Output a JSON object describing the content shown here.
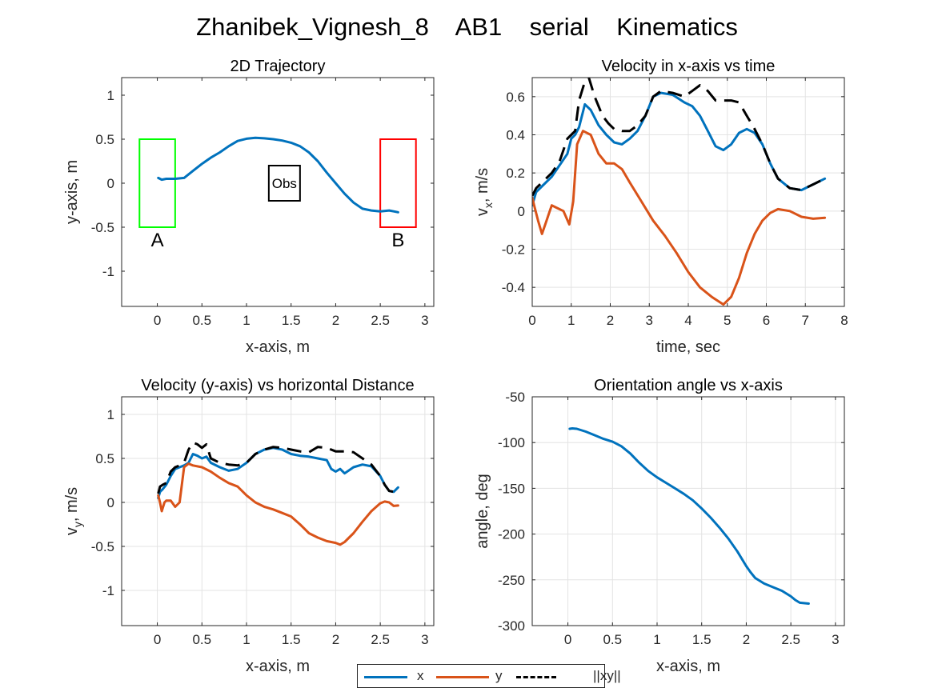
{
  "figure": {
    "title": "Zhanibek_Vignesh_8    AB1    serial    Kinematics"
  },
  "colors": {
    "x": "#0072BD",
    "y": "#D95319",
    "xy": "#000000",
    "start_box": "#00FF00",
    "end_box": "#FF0000",
    "obstacle": "#000000"
  },
  "legend": {
    "items": [
      {
        "label": "x",
        "color": "#0072BD",
        "style": "solid"
      },
      {
        "label": "y",
        "color": "#D95319",
        "style": "solid"
      },
      {
        "label": "||xy||",
        "color": "#000000",
        "style": "dashed"
      }
    ],
    "placement": "bottom-center"
  },
  "chart_data": [
    {
      "type": "line",
      "title": "2D Trajectory",
      "xlabel": "x-axis, m",
      "ylabel": "y-axis, m",
      "xlim": [
        -0.4,
        3.1
      ],
      "ylim": [
        -1.4,
        1.2
      ],
      "xticks": [
        0,
        0.5,
        1,
        1.5,
        2,
        2.5,
        3
      ],
      "xtick_labels": [
        "0",
        "0.5",
        "1",
        "1.5",
        "2",
        "2.5",
        "3"
      ],
      "yticks": [
        -1,
        -0.5,
        0,
        0.5,
        1
      ],
      "ytick_labels": [
        "-1",
        "-0.5",
        "0",
        "0.5",
        "1"
      ],
      "grid": false,
      "series": [
        {
          "color": "#0072BD",
          "style": "solid",
          "x": [
            0.01,
            0.05,
            0.1,
            0.2,
            0.3,
            0.4,
            0.5,
            0.6,
            0.7,
            0.8,
            0.9,
            1.0,
            1.1,
            1.2,
            1.3,
            1.4,
            1.5,
            1.6,
            1.7,
            1.8,
            1.9,
            2.0,
            2.1,
            2.2,
            2.3,
            2.4,
            2.5,
            2.6,
            2.65,
            2.7
          ],
          "y": [
            0.06,
            0.04,
            0.05,
            0.05,
            0.06,
            0.14,
            0.22,
            0.29,
            0.35,
            0.42,
            0.48,
            0.505,
            0.515,
            0.51,
            0.5,
            0.485,
            0.46,
            0.42,
            0.35,
            0.25,
            0.12,
            0.0,
            -0.12,
            -0.22,
            -0.29,
            -0.31,
            -0.32,
            -0.31,
            -0.32,
            -0.33
          ]
        }
      ],
      "rects": [
        {
          "x": [
            -0.2,
            0.2
          ],
          "y": [
            -0.5,
            0.5
          ],
          "color": "#00FF00",
          "label": "A"
        },
        {
          "x": [
            2.5,
            2.9
          ],
          "y": [
            -0.5,
            0.5
          ],
          "color": "#FF0000",
          "label": "B"
        },
        {
          "x": [
            1.25,
            1.6
          ],
          "y": [
            -0.2,
            0.2
          ],
          "color": "#000000",
          "label": "Obs"
        }
      ]
    },
    {
      "type": "line",
      "title": "Velocity in x-axis vs time",
      "xlabel": "time, sec",
      "ylabel": "v_x, m/s",
      "xlim": [
        0,
        8
      ],
      "ylim": [
        -0.5,
        0.7
      ],
      "xticks": [
        0,
        1,
        2,
        3,
        4,
        5,
        6,
        7,
        8
      ],
      "xtick_labels": [
        "0",
        "1",
        "2",
        "3",
        "4",
        "5",
        "6",
        "7",
        "8"
      ],
      "yticks": [
        -0.4,
        -0.2,
        0,
        0.2,
        0.4,
        0.6
      ],
      "ytick_labels": [
        "-0.4",
        "-0.2",
        "0",
        "0.2",
        "0.4",
        "0.6"
      ],
      "grid": true,
      "series": [
        {
          "name": "x",
          "color": "#0072BD",
          "style": "solid",
          "x": [
            0,
            0.1,
            0.3,
            0.5,
            0.7,
            0.9,
            1.0,
            1.1,
            1.2,
            1.35,
            1.5,
            1.7,
            1.9,
            2.1,
            2.3,
            2.5,
            2.7,
            2.9,
            3.1,
            3.3,
            3.6,
            3.9,
            4.1,
            4.3,
            4.5,
            4.7,
            4.9,
            5.1,
            5.3,
            5.5,
            5.7,
            5.9,
            6.1,
            6.3,
            6.6,
            6.9,
            7.2,
            7.5
          ],
          "y": [
            0.03,
            0.1,
            0.14,
            0.18,
            0.24,
            0.3,
            0.38,
            0.4,
            0.44,
            0.56,
            0.53,
            0.45,
            0.4,
            0.36,
            0.35,
            0.38,
            0.42,
            0.5,
            0.6,
            0.62,
            0.61,
            0.57,
            0.55,
            0.5,
            0.42,
            0.34,
            0.32,
            0.35,
            0.41,
            0.43,
            0.41,
            0.35,
            0.25,
            0.17,
            0.12,
            0.11,
            0.14,
            0.17
          ]
        },
        {
          "name": "y",
          "color": "#D95319",
          "style": "solid",
          "x": [
            0,
            0.05,
            0.15,
            0.25,
            0.35,
            0.45,
            0.5,
            0.6,
            0.8,
            0.95,
            1.05,
            1.15,
            1.3,
            1.5,
            1.7,
            1.9,
            2.1,
            2.3,
            2.5,
            2.8,
            3.1,
            3.4,
            3.7,
            4.0,
            4.3,
            4.6,
            4.9,
            5.1,
            5.3,
            5.5,
            5.7,
            5.9,
            6.1,
            6.3,
            6.6,
            6.9,
            7.2,
            7.5
          ],
          "y": [
            0.07,
            0.03,
            -0.05,
            -0.12,
            -0.06,
            0.0,
            0.03,
            0.02,
            0.0,
            -0.07,
            0.05,
            0.35,
            0.42,
            0.4,
            0.3,
            0.25,
            0.25,
            0.22,
            0.15,
            0.05,
            -0.05,
            -0.13,
            -0.22,
            -0.32,
            -0.4,
            -0.45,
            -0.49,
            -0.45,
            -0.35,
            -0.22,
            -0.12,
            -0.05,
            -0.01,
            0.01,
            0.0,
            -0.03,
            -0.04,
            -0.035
          ]
        },
        {
          "name": "||xy||",
          "color": "#000000",
          "style": "dashed",
          "x": [
            0,
            0.1,
            0.3,
            0.5,
            0.7,
            0.9,
            1.0,
            1.1,
            1.2,
            1.35,
            1.45,
            1.6,
            1.8,
            1.95,
            2.1,
            2.3,
            2.5,
            2.7,
            2.9,
            3.1,
            3.3,
            3.6,
            3.9,
            4.1,
            4.3,
            4.5,
            4.7,
            4.9,
            5.1,
            5.3,
            5.5,
            5.7,
            5.9,
            6.1,
            6.3,
            6.6,
            6.9,
            7.2,
            7.5
          ],
          "y": [
            0.08,
            0.12,
            0.16,
            0.2,
            0.26,
            0.38,
            0.4,
            0.42,
            0.58,
            0.68,
            0.7,
            0.6,
            0.5,
            0.46,
            0.43,
            0.42,
            0.42,
            0.45,
            0.5,
            0.6,
            0.63,
            0.62,
            0.6,
            0.63,
            0.66,
            0.63,
            0.58,
            0.58,
            0.58,
            0.57,
            0.5,
            0.43,
            0.35,
            0.25,
            0.17,
            0.12,
            0.11,
            0.14,
            0.17
          ]
        }
      ]
    },
    {
      "type": "line",
      "title": "Velocity (y-axis) vs horizontal Distance",
      "xlabel": "x-axis, m",
      "ylabel": "v_y, m/s",
      "xlim": [
        -0.4,
        3.1
      ],
      "ylim": [
        -1.4,
        1.2
      ],
      "xticks": [
        0,
        0.5,
        1,
        1.5,
        2,
        2.5,
        3
      ],
      "xtick_labels": [
        "0",
        "0.5",
        "1",
        "1.5",
        "2",
        "2.5",
        "3"
      ],
      "yticks": [
        -1,
        -0.5,
        0,
        0.5,
        1
      ],
      "ytick_labels": [
        "-1",
        "-0.5",
        "0",
        "0.5",
        "1"
      ],
      "grid": true,
      "series": [
        {
          "name": "x",
          "color": "#0072BD",
          "style": "solid",
          "x": [
            0.01,
            0.03,
            0.06,
            0.1,
            0.15,
            0.2,
            0.25,
            0.3,
            0.35,
            0.4,
            0.45,
            0.5,
            0.55,
            0.6,
            0.7,
            0.8,
            0.9,
            1.0,
            1.1,
            1.2,
            1.3,
            1.4,
            1.5,
            1.6,
            1.7,
            1.8,
            1.9,
            1.95,
            2.0,
            2.05,
            2.1,
            2.2,
            2.3,
            2.4,
            2.5,
            2.55,
            2.6,
            2.65,
            2.7
          ],
          "y": [
            0.05,
            0.12,
            0.15,
            0.2,
            0.3,
            0.38,
            0.4,
            0.42,
            0.45,
            0.55,
            0.53,
            0.5,
            0.52,
            0.45,
            0.4,
            0.36,
            0.38,
            0.45,
            0.55,
            0.6,
            0.62,
            0.6,
            0.55,
            0.53,
            0.52,
            0.5,
            0.48,
            0.38,
            0.35,
            0.38,
            0.33,
            0.4,
            0.43,
            0.41,
            0.3,
            0.2,
            0.13,
            0.12,
            0.17
          ]
        },
        {
          "name": "y",
          "color": "#D95319",
          "style": "solid",
          "x": [
            0.01,
            0.03,
            0.05,
            0.08,
            0.1,
            0.15,
            0.2,
            0.25,
            0.3,
            0.35,
            0.4,
            0.5,
            0.6,
            0.7,
            0.8,
            0.9,
            1.0,
            1.1,
            1.2,
            1.3,
            1.4,
            1.5,
            1.6,
            1.7,
            1.8,
            1.9,
            2.0,
            2.05,
            2.1,
            2.2,
            2.3,
            2.4,
            2.5,
            2.55,
            2.6,
            2.65,
            2.7
          ],
          "y": [
            0.08,
            0.0,
            -0.1,
            0.0,
            0.02,
            0.02,
            -0.05,
            0.0,
            0.4,
            0.44,
            0.42,
            0.4,
            0.35,
            0.28,
            0.22,
            0.18,
            0.08,
            0.0,
            -0.05,
            -0.08,
            -0.12,
            -0.16,
            -0.25,
            -0.35,
            -0.4,
            -0.44,
            -0.46,
            -0.48,
            -0.45,
            -0.35,
            -0.22,
            -0.1,
            -0.01,
            0.01,
            0.0,
            -0.04,
            -0.035
          ]
        },
        {
          "name": "||xy||",
          "color": "#000000",
          "style": "dashed",
          "x": [
            0.01,
            0.03,
            0.06,
            0.1,
            0.15,
            0.2,
            0.25,
            0.3,
            0.35,
            0.4,
            0.45,
            0.5,
            0.55,
            0.6,
            0.7,
            0.8,
            0.9,
            1.0,
            1.1,
            1.2,
            1.3,
            1.4,
            1.5,
            1.6,
            1.7,
            1.8,
            1.9,
            2.0,
            2.1,
            2.2,
            2.3,
            2.4,
            2.5,
            2.55,
            2.6,
            2.65,
            2.7
          ],
          "y": [
            0.1,
            0.18,
            0.2,
            0.22,
            0.35,
            0.4,
            0.42,
            0.45,
            0.6,
            0.68,
            0.66,
            0.62,
            0.66,
            0.5,
            0.45,
            0.43,
            0.42,
            0.45,
            0.55,
            0.6,
            0.63,
            0.62,
            0.6,
            0.58,
            0.57,
            0.63,
            0.62,
            0.58,
            0.58,
            0.57,
            0.5,
            0.43,
            0.3,
            0.2,
            0.13,
            0.12,
            0.17
          ]
        }
      ]
    },
    {
      "type": "line",
      "title": "Orientation angle vs x-axis",
      "xlabel": "x-axis, m",
      "ylabel": "angle, deg",
      "xlim": [
        -0.4,
        3.1
      ],
      "ylim": [
        -300,
        -50
      ],
      "xticks": [
        0,
        0.5,
        1,
        1.5,
        2,
        2.5,
        3
      ],
      "xtick_labels": [
        "0",
        "0.5",
        "1",
        "1.5",
        "2",
        "2.5",
        "3"
      ],
      "yticks": [
        -300,
        -250,
        -200,
        -150,
        -100,
        -50
      ],
      "ytick_labels": [
        "-300",
        "-250",
        "-200",
        "-150",
        "-100",
        "-50"
      ],
      "grid": true,
      "series": [
        {
          "color": "#0072BD",
          "style": "solid",
          "x": [
            0.02,
            0.05,
            0.1,
            0.2,
            0.3,
            0.4,
            0.5,
            0.6,
            0.7,
            0.8,
            0.9,
            1.0,
            1.1,
            1.2,
            1.3,
            1.4,
            1.5,
            1.6,
            1.7,
            1.8,
            1.9,
            2.0,
            2.05,
            2.1,
            2.2,
            2.3,
            2.4,
            2.5,
            2.55,
            2.6,
            2.7
          ],
          "y": [
            -85,
            -84.5,
            -85,
            -88,
            -92,
            -96,
            -99,
            -104,
            -112,
            -122,
            -131,
            -138,
            -144,
            -150,
            -156,
            -163,
            -172,
            -182,
            -193,
            -205,
            -219,
            -235,
            -242,
            -248,
            -254,
            -258,
            -262,
            -268,
            -272,
            -275,
            -276
          ]
        }
      ]
    }
  ]
}
